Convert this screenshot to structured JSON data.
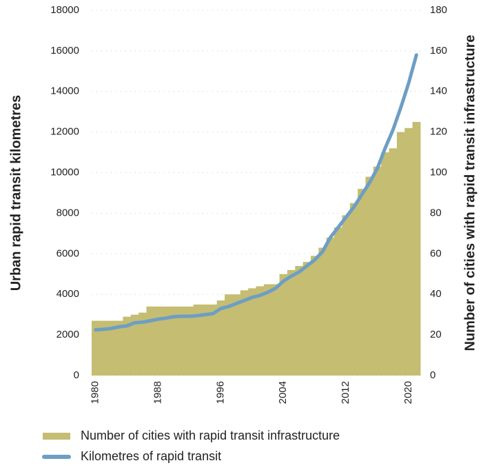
{
  "chart_data": {
    "type": "bar-line",
    "y_label": "Urban rapid transit kilometres",
    "y2_label": "Number of cities with rapid transit infrastructure",
    "categories": [
      "1980",
      null,
      null,
      null,
      null,
      null,
      null,
      null,
      "1988",
      null,
      null,
      null,
      null,
      null,
      null,
      null,
      "1996",
      null,
      null,
      null,
      null,
      null,
      null,
      null,
      "2004",
      null,
      null,
      null,
      null,
      null,
      null,
      null,
      "2012",
      null,
      null,
      null,
      null,
      null,
      null,
      null,
      "2020",
      null
    ],
    "series": [
      {
        "name": "Number of cities with rapid transit infrastructure",
        "type": "bar",
        "axis": "y2",
        "color": "#c4bd72",
        "values": [
          27,
          27,
          27,
          27,
          29,
          30,
          31,
          34,
          34,
          34,
          34,
          34,
          34,
          35,
          35,
          35,
          37,
          40,
          40,
          42,
          43,
          44,
          45,
          45,
          50,
          52,
          54,
          56,
          59,
          63,
          68,
          73,
          79,
          85,
          92,
          98,
          103,
          110,
          112,
          120,
          122,
          125
        ]
      },
      {
        "name": "Kilometres of rapid transit",
        "type": "line",
        "axis": "y",
        "color": "#6d9ec4",
        "values": [
          2250,
          2280,
          2320,
          2400,
          2450,
          2600,
          2630,
          2700,
          2780,
          2830,
          2900,
          2920,
          2920,
          2950,
          3000,
          3050,
          3300,
          3400,
          3550,
          3700,
          3850,
          3950,
          4100,
          4300,
          4650,
          4900,
          5100,
          5400,
          5700,
          6100,
          6800,
          7300,
          7800,
          8300,
          8900,
          9500,
          10200,
          11200,
          12100,
          13200,
          14400,
          15800
        ]
      }
    ],
    "ylim": [
      0,
      18000
    ],
    "yticks": [
      0,
      2000,
      4000,
      6000,
      8000,
      10000,
      12000,
      14000,
      16000,
      18000
    ],
    "y2lim": [
      0,
      180
    ],
    "y2ticks": [
      0,
      20,
      40,
      60,
      80,
      100,
      120,
      140,
      160,
      180
    ],
    "grid": true,
    "legend": "bottom"
  }
}
